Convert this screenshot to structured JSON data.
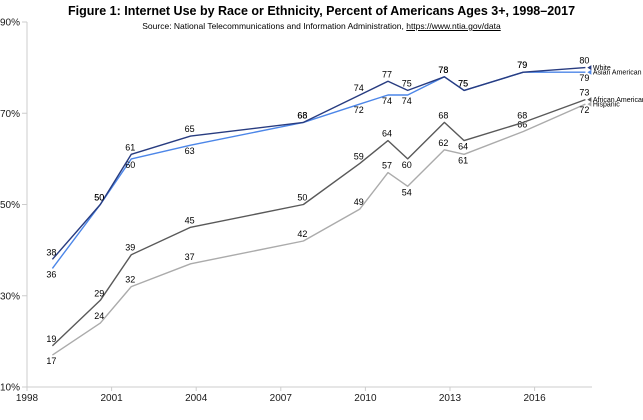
{
  "title": "Figure 1: Internet Use by Race or Ethnicity, Percent of Americans Ages 3+, 1998–2017",
  "source": {
    "prefix": "Source: National Telecommunications and Information Administration, ",
    "link": "https://www.ntia.gov/data"
  },
  "chart_data": {
    "type": "line",
    "title": "Figure 1: Internet Use by Race or Ethnicity, Percent of Americans Ages 3+, 1998–2017",
    "subtitle": "Source: National Telecommunications and Information Administration, https://www.ntia.gov/data",
    "ylabel": "",
    "xlabel": "",
    "ylim": [
      10,
      90
    ],
    "xlim": [
      1998,
      2018
    ],
    "grid": false,
    "legend_position": "line-end-right",
    "y_ticks": [
      90,
      70,
      50,
      30,
      10
    ],
    "y_tick_labels": [
      "90%",
      "70%",
      "50%",
      "30%",
      "10%"
    ],
    "x_tick_years": [
      1998,
      2001,
      2004,
      2007,
      2010,
      2013,
      2016
    ],
    "x_tick_labels": [
      "1998",
      "2001",
      "2004",
      "2007",
      "2010",
      "2013",
      "2016"
    ],
    "years": [
      1998,
      2000,
      2001,
      2003,
      2007,
      2009,
      2010,
      2011,
      2012,
      2013,
      2015,
      2017
    ],
    "x_plot": [
      1998.9,
      2000.6,
      2001.7,
      2003.8,
      2007.8,
      2009.8,
      2010.8,
      2011.5,
      2012.8,
      2013.5,
      2015.6,
      2017.8
    ],
    "axis_color": "#cccccc",
    "label_color": "#000000",
    "series": [
      {
        "name": "Hispanic",
        "color": "#ababab",
        "values": [
          17,
          24,
          32,
          37,
          42,
          49,
          57,
          54,
          62,
          61,
          66,
          72
        ],
        "label_pos": [
          "b",
          "a",
          "a",
          "a",
          "a",
          "a",
          "a",
          "b",
          "a",
          "b",
          "a",
          "b"
        ]
      },
      {
        "name": "African American",
        "color": "#595959",
        "values": [
          19,
          29,
          39,
          45,
          50,
          59,
          64,
          60,
          68,
          64,
          68,
          73
        ],
        "label_pos": [
          "a",
          "a",
          "a",
          "a",
          "a",
          "a",
          "a",
          "b",
          "a",
          "b",
          "a",
          "a"
        ]
      },
      {
        "name": "Asian American",
        "color": "#4c86e8",
        "values": [
          36,
          50,
          60,
          63,
          68,
          72,
          74,
          74,
          78,
          75,
          79,
          79
        ],
        "label_pos": [
          "b",
          "a",
          "b",
          "b",
          "a",
          "b",
          "b",
          "b",
          "a",
          "a",
          "a",
          "b"
        ]
      },
      {
        "name": "White",
        "color": "#283c80",
        "values": [
          38,
          50,
          61,
          65,
          68,
          74,
          77,
          75,
          78,
          75,
          79,
          80
        ],
        "label_pos": [
          "a",
          "a",
          "a",
          "a",
          "a",
          "a",
          "a",
          "a",
          "a",
          "a",
          "a",
          "a"
        ]
      }
    ],
    "legend_order": [
      "White",
      "Asian American",
      "African American",
      "Hispanic"
    ],
    "legend_marker_icon": "arrow-left-icon"
  }
}
